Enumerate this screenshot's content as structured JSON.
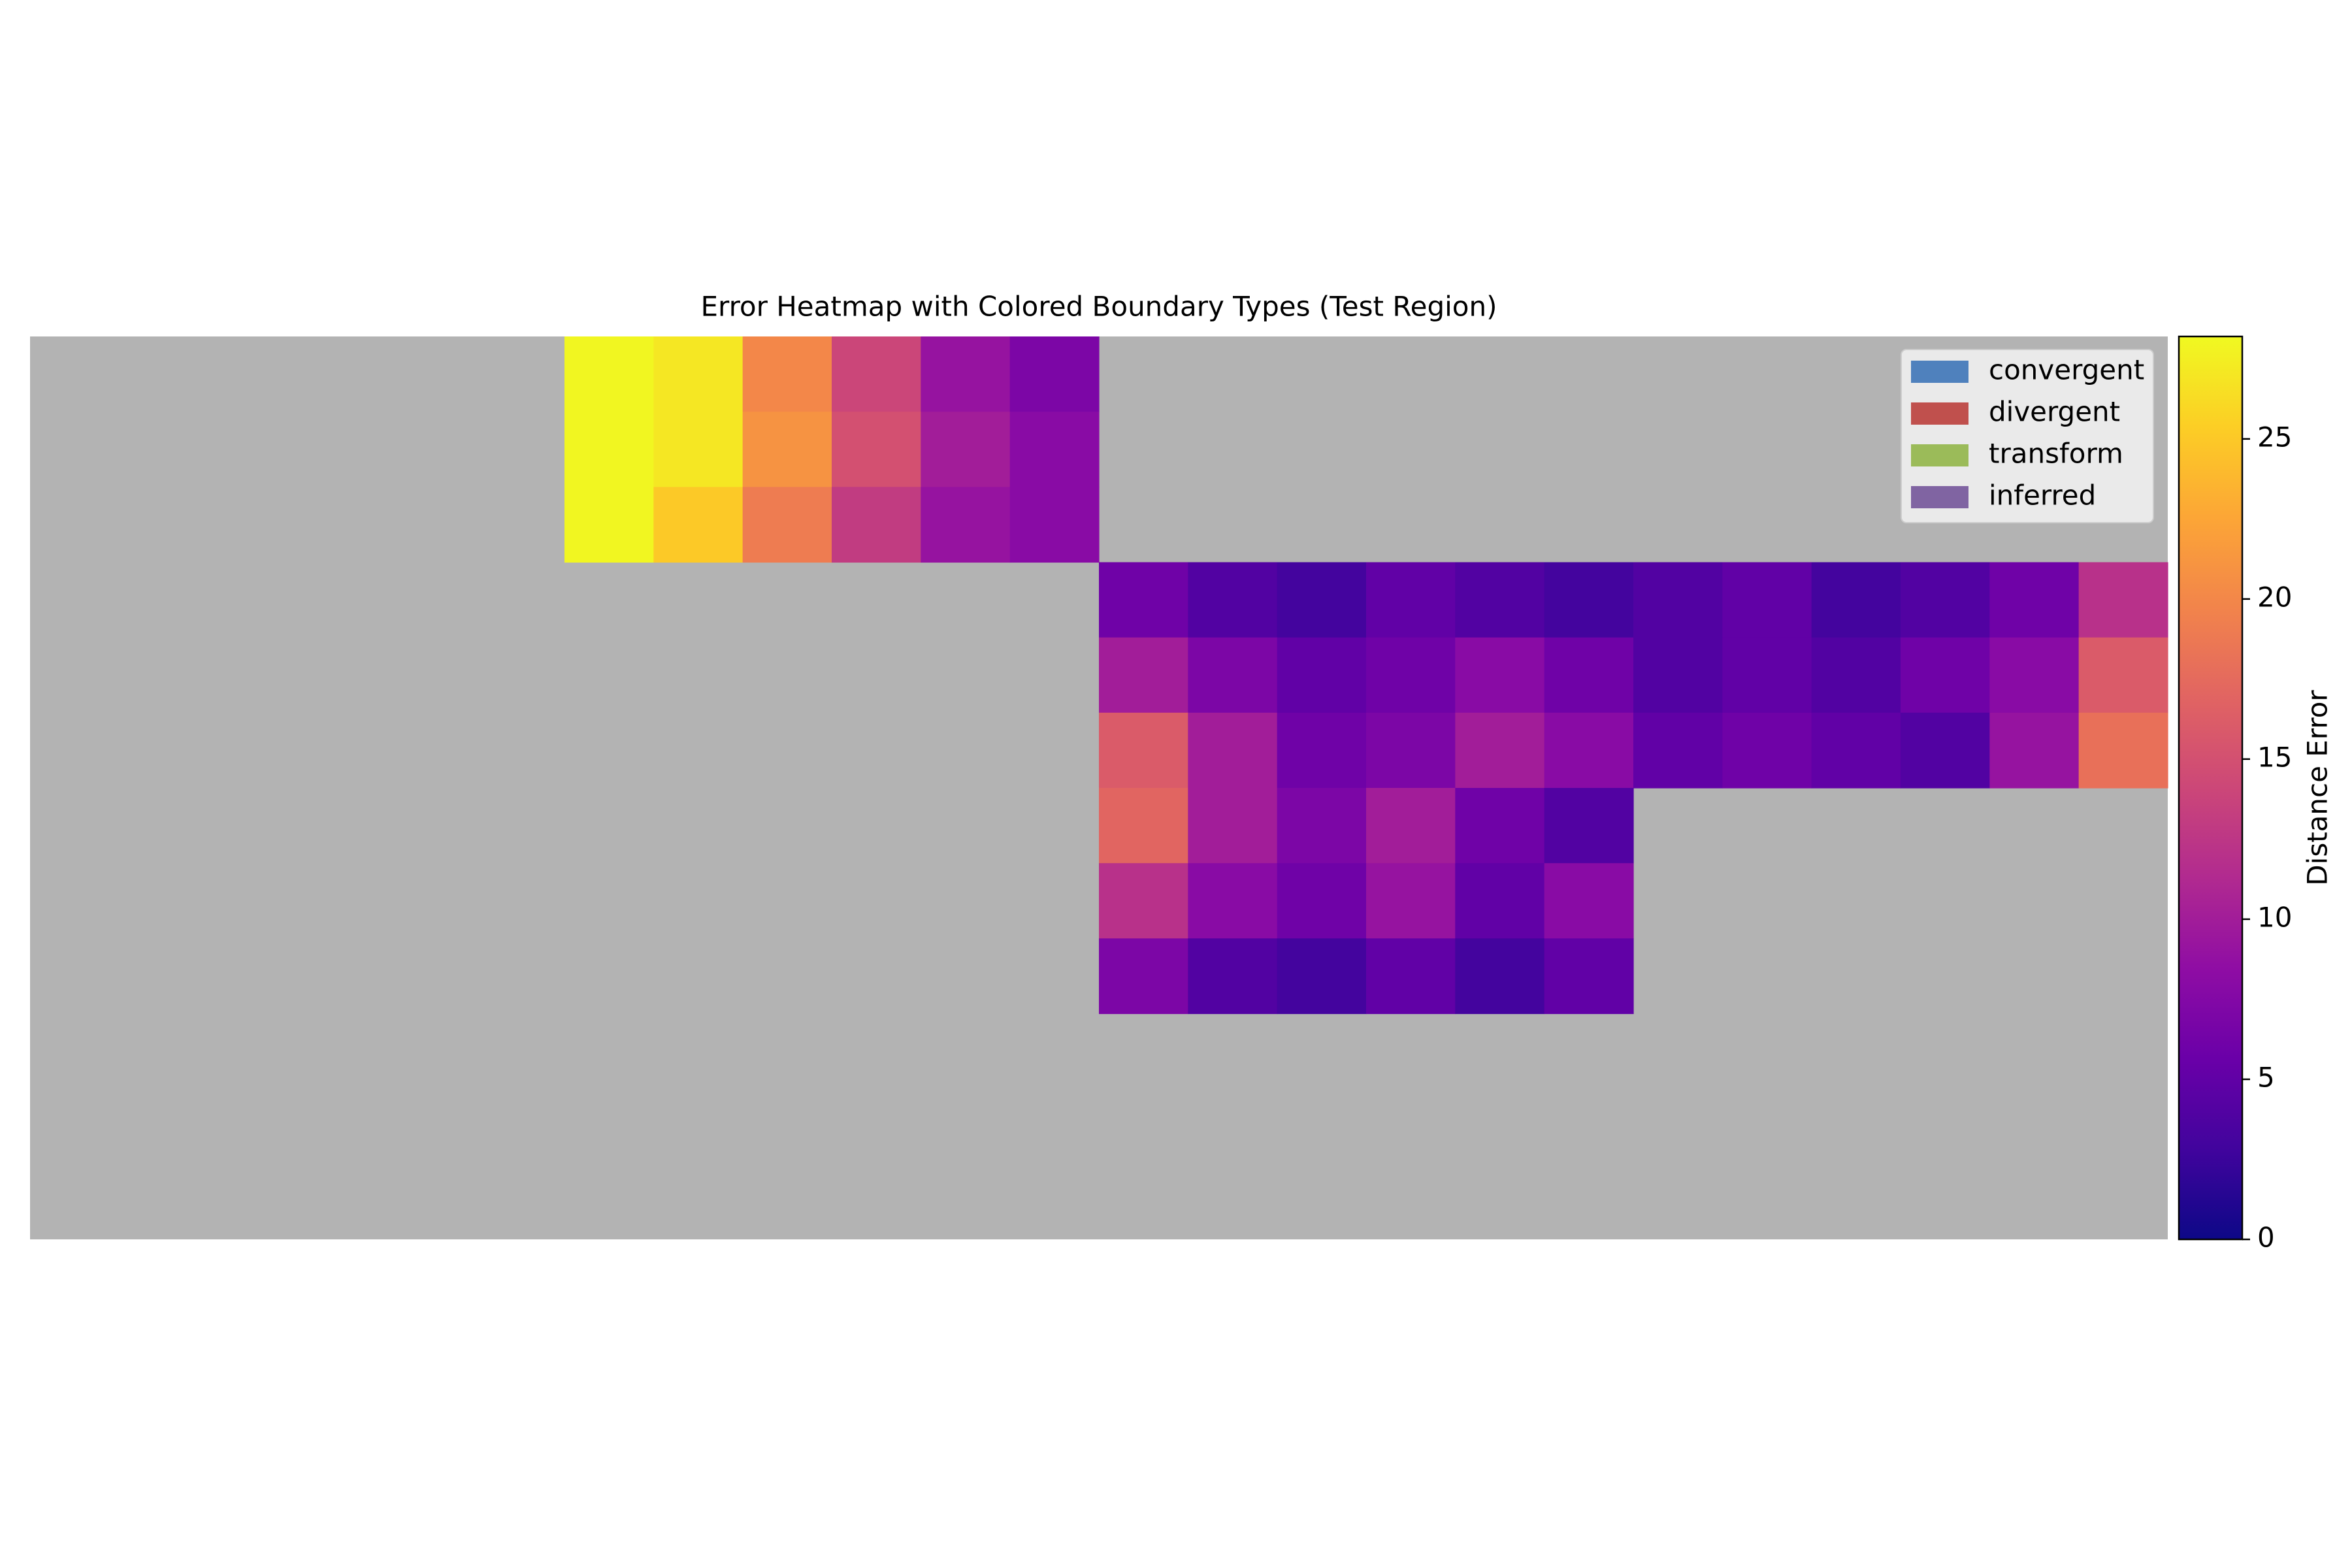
{
  "chart_data": {
    "type": "heatmap",
    "title": "Error Heatmap with Colored Boundary Types (Test Region)",
    "colorbar_label": "Distance Error",
    "colormap": "plasma",
    "nodata_color": "#b3b3b3",
    "clim": [
      0,
      28.2
    ],
    "colorbar_ticks": [
      0,
      5,
      10,
      15,
      20,
      25
    ],
    "legend_loc": "upper right",
    "legend": [
      {
        "name": "convergent",
        "color": "#4f81bd"
      },
      {
        "name": "divergent",
        "color": "#c0504d"
      },
      {
        "name": "transform",
        "color": "#9bbb59"
      },
      {
        "name": "inferred",
        "color": "#8064a2"
      }
    ],
    "values": [
      [
        null,
        null,
        null,
        null,
        null,
        null,
        28,
        27,
        20,
        14,
        9,
        7,
        null,
        null,
        null,
        null,
        null,
        null,
        null,
        null,
        null,
        null,
        null,
        null
      ],
      [
        null,
        null,
        null,
        null,
        null,
        null,
        28,
        27,
        21,
        15,
        10,
        8,
        null,
        null,
        null,
        null,
        null,
        null,
        null,
        null,
        null,
        null,
        null,
        null
      ],
      [
        null,
        null,
        null,
        null,
        null,
        null,
        28,
        25,
        19,
        13,
        9,
        8,
        null,
        null,
        null,
        null,
        null,
        null,
        null,
        null,
        null,
        null,
        null,
        null
      ],
      [
        null,
        null,
        null,
        null,
        null,
        null,
        null,
        null,
        null,
        null,
        null,
        null,
        6,
        4,
        3,
        5,
        4,
        3,
        4,
        5,
        3,
        4,
        6,
        12
      ],
      [
        null,
        null,
        null,
        null,
        null,
        null,
        null,
        null,
        null,
        null,
        null,
        null,
        10,
        7,
        5,
        6,
        8,
        6,
        4,
        5,
        4,
        6,
        8,
        16
      ],
      [
        null,
        null,
        null,
        null,
        null,
        null,
        null,
        null,
        null,
        null,
        null,
        null,
        16,
        10,
        6,
        7,
        10,
        8,
        5,
        6,
        5,
        4,
        9,
        18
      ],
      [
        null,
        null,
        null,
        null,
        null,
        null,
        null,
        null,
        null,
        null,
        null,
        null,
        17,
        10,
        7,
        10,
        6,
        4,
        null,
        null,
        null,
        null,
        null,
        null
      ],
      [
        null,
        null,
        null,
        null,
        null,
        null,
        null,
        null,
        null,
        null,
        null,
        null,
        12,
        8,
        6,
        9,
        5,
        8,
        null,
        null,
        null,
        null,
        null,
        null
      ],
      [
        null,
        null,
        null,
        null,
        null,
        null,
        null,
        null,
        null,
        null,
        null,
        null,
        7,
        4,
        3,
        5,
        3,
        5,
        null,
        null,
        null,
        null,
        null,
        null
      ],
      [
        null,
        null,
        null,
        null,
        null,
        null,
        null,
        null,
        null,
        null,
        null,
        null,
        null,
        null,
        null,
        null,
        null,
        null,
        null,
        null,
        null,
        null,
        null,
        null
      ],
      [
        null,
        null,
        null,
        null,
        null,
        null,
        null,
        null,
        null,
        null,
        null,
        null,
        null,
        null,
        null,
        null,
        null,
        null,
        null,
        null,
        null,
        null,
        null,
        null
      ],
      [
        null,
        null,
        null,
        null,
        null,
        null,
        null,
        null,
        null,
        null,
        null,
        null,
        null,
        null,
        null,
        null,
        null,
        null,
        null,
        null,
        null,
        null,
        null,
        null
      ]
    ]
  }
}
